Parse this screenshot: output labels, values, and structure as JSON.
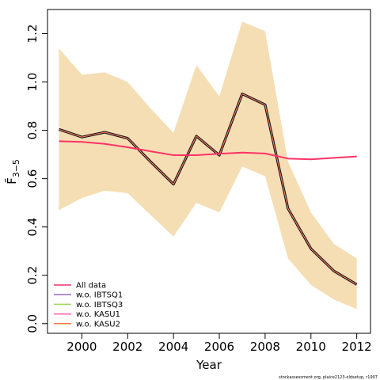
{
  "chart_data": {
    "type": "line",
    "x": [
      1999,
      2000,
      2001,
      2002,
      2003,
      2004,
      2005,
      2006,
      2007,
      2008,
      2009,
      2010,
      2011,
      2012
    ],
    "xlim": [
      1998.5,
      2012.6
    ],
    "ylim": [
      -0.04,
      1.3
    ],
    "xticks": [
      2000,
      2002,
      2004,
      2006,
      2008,
      2010,
      2012
    ],
    "yticks": [
      0.0,
      0.2,
      0.4,
      0.6,
      0.8,
      1.0,
      1.2
    ],
    "ytick_labels": [
      "0.0",
      "0.2",
      "0.4",
      "0.6",
      "0.8",
      "1.0",
      "1.2"
    ],
    "xlabel": "Year",
    "ylabel": "F̄",
    "ylabel_subscript": "3−5",
    "band": {
      "color": "#f5deb3",
      "upper": [
        1.14,
        1.03,
        1.04,
        1.0,
        0.89,
        0.79,
        1.07,
        0.94,
        1.25,
        1.21,
        0.67,
        0.46,
        0.33,
        0.27
      ],
      "lower": [
        0.47,
        0.52,
        0.55,
        0.54,
        0.45,
        0.36,
        0.5,
        0.46,
        0.65,
        0.61,
        0.27,
        0.16,
        0.1,
        0.06
      ]
    },
    "series": [
      {
        "name": "All data",
        "color": "#ff3366",
        "values": [
          0.755,
          0.752,
          0.744,
          0.73,
          0.713,
          0.697,
          0.697,
          0.703,
          0.708,
          0.704,
          0.683,
          0.68,
          0.686,
          0.692
        ]
      },
      {
        "name": "w.o. IBTSQ1",
        "color": "#9966cc",
        "values": [
          0.804,
          0.772,
          0.792,
          0.767,
          0.67,
          0.577,
          0.776,
          0.697,
          0.951,
          0.906,
          0.476,
          0.31,
          0.218,
          0.162
        ]
      },
      {
        "name": "w.o. IBTSQ3",
        "color": "#99dd55",
        "values": [
          0.804,
          0.772,
          0.792,
          0.767,
          0.67,
          0.577,
          0.776,
          0.697,
          0.951,
          0.906,
          0.476,
          0.31,
          0.218,
          0.162
        ]
      },
      {
        "name": "w.o. KASU1",
        "color": "#ff55bb",
        "values": [
          0.804,
          0.772,
          0.792,
          0.767,
          0.67,
          0.577,
          0.776,
          0.697,
          0.951,
          0.906,
          0.476,
          0.31,
          0.218,
          0.162
        ]
      },
      {
        "name": "w.o. KASU2",
        "color": "#ff7744",
        "values": [
          0.804,
          0.772,
          0.792,
          0.767,
          0.67,
          0.577,
          0.776,
          0.697,
          0.951,
          0.906,
          0.476,
          0.31,
          0.218,
          0.162
        ]
      }
    ],
    "base_series": {
      "color": "#111111",
      "values": [
        0.804,
        0.772,
        0.792,
        0.767,
        0.67,
        0.577,
        0.776,
        0.697,
        0.951,
        0.906,
        0.476,
        0.31,
        0.218,
        0.162
      ]
    },
    "legend_position": "bottom-left",
    "grid": false,
    "footnote": "stockassessment.org, plaice2123-oldsetup, r1907"
  }
}
